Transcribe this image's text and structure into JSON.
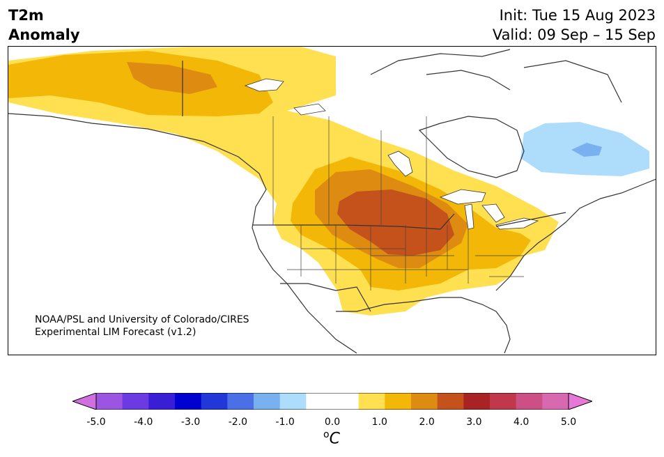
{
  "header": {
    "title_line1": "T2m",
    "title_line2": "Anomaly",
    "init_text": "Init: Tue 15 Aug 2023",
    "valid_text": "Valid: 09 Sep – 15 Sep"
  },
  "credit": {
    "line1": "NOAA/PSL and University of Colorado/CIRES",
    "line2": "Experimental LIM Forecast (v1.2)"
  },
  "colorbar": {
    "ticks": [
      "-5.0",
      "-4.0",
      "-3.0",
      "-2.0",
      "-1.0",
      "0.0",
      "1.0",
      "2.0",
      "3.0",
      "4.0",
      "5.0"
    ],
    "unit_base": "C",
    "unit_sup": "o",
    "colors": [
      "#d070e0",
      "#9b55e0",
      "#6a3be0",
      "#3a1ed6",
      "#0000d0",
      "#2038d8",
      "#4a6fe6",
      "#78b0f0",
      "#aedcfb",
      "#ffffff",
      "#ffffff",
      "#ffe050",
      "#f2b707",
      "#de8b12",
      "#c5521a",
      "#aa2324",
      "#c0384a",
      "#cc5085",
      "#d868b0",
      "#e678d8"
    ]
  },
  "map": {
    "region": "North America",
    "anomaly_colors": {
      "light_yellow": "#ffe050",
      "gold": "#f2b707",
      "orange": "#de8b12",
      "red_orange": "#c5521a",
      "light_blue": "#aedcfb",
      "medium_blue": "#78b0f0"
    }
  }
}
